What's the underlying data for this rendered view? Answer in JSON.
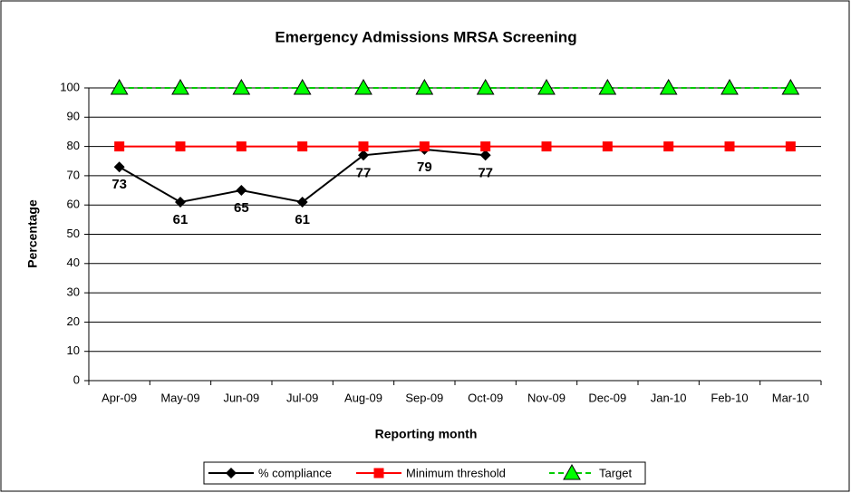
{
  "chart_data": {
    "type": "line",
    "title": "Emergency Admissions MRSA Screening",
    "xlabel": "Reporting month",
    "ylabel": "Percentage",
    "categories": [
      "Apr-09",
      "May-09",
      "Jun-09",
      "Jul-09",
      "Aug-09",
      "Sep-09",
      "Oct-09",
      "Nov-09",
      "Dec-09",
      "Jan-10",
      "Feb-10",
      "Mar-10"
    ],
    "series": [
      {
        "name": "% compliance",
        "color": "#000000",
        "marker": "diamond",
        "dash": false,
        "data_labels": true,
        "values": [
          73,
          61,
          65,
          61,
          77,
          79,
          77,
          null,
          null,
          null,
          null,
          null
        ]
      },
      {
        "name": "Minimum threshold",
        "color": "#ff0000",
        "marker": "square",
        "dash": false,
        "data_labels": false,
        "values": [
          80,
          80,
          80,
          80,
          80,
          80,
          80,
          80,
          80,
          80,
          80,
          80
        ]
      },
      {
        "name": "Target",
        "color": "#00cc00",
        "marker": "triangle",
        "dash": true,
        "data_labels": false,
        "values": [
          100,
          100,
          100,
          100,
          100,
          100,
          100,
          100,
          100,
          100,
          100,
          100
        ]
      }
    ],
    "ylim": [
      0,
      100
    ],
    "yticks": [
      0,
      10,
      20,
      30,
      40,
      50,
      60,
      70,
      80,
      90,
      100
    ],
    "grid": true,
    "legend": "bottom"
  }
}
